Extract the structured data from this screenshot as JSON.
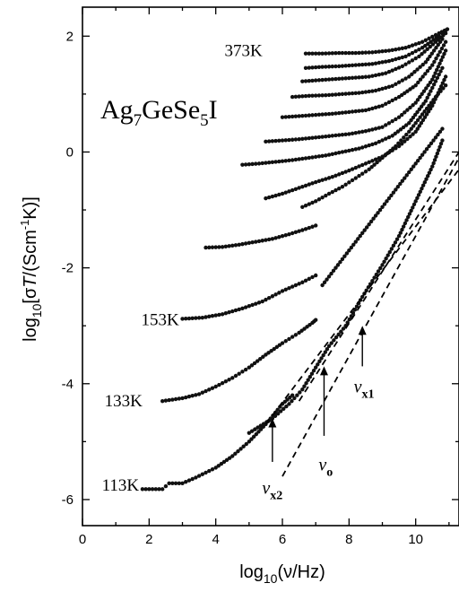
{
  "chart_data": {
    "type": "scatter",
    "formula": {
      "base": "Ag",
      "s1": "7",
      "mid": "GeSe",
      "s2": "5",
      "end": "I"
    },
    "xlabel": {
      "pre": "log",
      "sub": "10",
      "post": "(ν/Hz)"
    },
    "ylabel": {
      "pre": "log",
      "sub": "10",
      "mid": "[σ",
      "T": "T",
      "unit": "/(Scm",
      "sup": "-1",
      "end": "K)]"
    },
    "xlim": [
      0,
      11.3
    ],
    "ylim": [
      -6.45,
      2.5
    ],
    "x_ticks": [
      "0",
      "2",
      "4",
      "6",
      "8",
      "10"
    ],
    "x_tick_values": [
      0,
      2,
      4,
      6,
      8,
      10
    ],
    "y_ticks": [
      "2",
      "0",
      "-2",
      "-4",
      "-6"
    ],
    "y_tick_values": [
      2,
      0,
      -2,
      -4,
      -6
    ],
    "temperature_labels": [
      {
        "text": "373K",
        "x": 5.4,
        "y": 1.75
      },
      {
        "text": "153K",
        "x": 2.9,
        "y": -2.9
      },
      {
        "text": "133K",
        "x": 1.8,
        "y": -4.3
      },
      {
        "text": "113K",
        "x": 1.7,
        "y": -5.75
      }
    ],
    "series": [
      {
        "points": [
          [
            1.8,
            -5.82
          ],
          [
            2.4,
            -5.82
          ],
          [
            2.6,
            -5.72
          ],
          [
            3.0,
            -5.72
          ],
          [
            3.4,
            -5.62
          ],
          [
            4.0,
            -5.45
          ],
          [
            4.5,
            -5.25
          ],
          [
            5.0,
            -5.0
          ],
          [
            5.5,
            -4.7
          ],
          [
            6.0,
            -4.35
          ],
          [
            6.3,
            -4.2
          ]
        ]
      },
      {
        "points": [
          [
            5.0,
            -4.85
          ],
          [
            5.7,
            -4.6
          ],
          [
            6.2,
            -4.35
          ],
          [
            6.6,
            -4.1
          ],
          [
            7.0,
            -3.72
          ],
          [
            7.4,
            -3.35
          ],
          [
            7.9,
            -3.0
          ],
          [
            8.4,
            -2.5
          ],
          [
            9.0,
            -1.95
          ],
          [
            9.5,
            -1.45
          ],
          [
            10.0,
            -0.85
          ],
          [
            10.5,
            -0.25
          ],
          [
            10.8,
            0.2
          ]
        ]
      },
      {
        "points": [
          [
            2.4,
            -4.3
          ],
          [
            3.0,
            -4.25
          ],
          [
            3.5,
            -4.18
          ],
          [
            4.0,
            -4.05
          ],
          [
            4.5,
            -3.9
          ],
          [
            5.0,
            -3.72
          ],
          [
            5.5,
            -3.5
          ],
          [
            6.0,
            -3.3
          ],
          [
            6.5,
            -3.12
          ],
          [
            6.9,
            -2.95
          ],
          [
            7.0,
            -2.9
          ]
        ]
      },
      {
        "points": [
          [
            7.2,
            -2.3
          ],
          [
            7.6,
            -2.0
          ],
          [
            8.0,
            -1.7
          ],
          [
            8.4,
            -1.4
          ],
          [
            8.8,
            -1.1
          ],
          [
            9.2,
            -0.8
          ],
          [
            9.6,
            -0.5
          ],
          [
            10.0,
            -0.2
          ],
          [
            10.4,
            0.1
          ],
          [
            10.8,
            0.4
          ]
        ]
      },
      {
        "points": [
          [
            3.0,
            -2.88
          ],
          [
            3.6,
            -2.86
          ],
          [
            4.2,
            -2.8
          ],
          [
            4.8,
            -2.7
          ],
          [
            5.4,
            -2.58
          ],
          [
            6.0,
            -2.4
          ],
          [
            6.6,
            -2.25
          ],
          [
            7.0,
            -2.13
          ]
        ]
      },
      {
        "points": [
          [
            6.6,
            -0.95
          ],
          [
            7.0,
            -0.85
          ],
          [
            7.4,
            -0.72
          ],
          [
            7.8,
            -0.6
          ],
          [
            8.2,
            -0.45
          ],
          [
            8.6,
            -0.3
          ],
          [
            9.0,
            -0.1
          ],
          [
            9.4,
            0.1
          ],
          [
            9.8,
            0.35
          ],
          [
            10.2,
            0.65
          ],
          [
            10.6,
            0.95
          ],
          [
            10.9,
            1.15
          ]
        ]
      },
      {
        "points": [
          [
            3.7,
            -1.65
          ],
          [
            4.2,
            -1.64
          ],
          [
            4.7,
            -1.6
          ],
          [
            5.2,
            -1.55
          ],
          [
            5.7,
            -1.5
          ],
          [
            6.2,
            -1.42
          ],
          [
            6.7,
            -1.33
          ],
          [
            7.0,
            -1.27
          ]
        ]
      },
      {
        "points": [
          [
            5.5,
            -0.8
          ],
          [
            6.0,
            -0.72
          ],
          [
            6.5,
            -0.62
          ],
          [
            7.0,
            -0.52
          ],
          [
            7.5,
            -0.43
          ],
          [
            8.0,
            -0.32
          ],
          [
            8.5,
            -0.2
          ],
          [
            9.0,
            -0.08
          ],
          [
            9.5,
            0.1
          ],
          [
            10.0,
            0.35
          ],
          [
            10.5,
            0.8
          ],
          [
            10.9,
            1.3
          ]
        ]
      },
      {
        "points": [
          [
            4.8,
            -0.22
          ],
          [
            5.3,
            -0.2
          ],
          [
            5.8,
            -0.17
          ],
          [
            6.3,
            -0.14
          ],
          [
            6.8,
            -0.1
          ],
          [
            7.3,
            -0.06
          ],
          [
            7.8,
            0.0
          ],
          [
            8.3,
            0.06
          ],
          [
            8.8,
            0.15
          ],
          [
            9.3,
            0.28
          ],
          [
            9.8,
            0.5
          ],
          [
            10.3,
            0.88
          ],
          [
            10.8,
            1.45
          ]
        ]
      },
      {
        "points": [
          [
            5.5,
            0.18
          ],
          [
            6.0,
            0.2
          ],
          [
            6.5,
            0.22
          ],
          [
            7.0,
            0.25
          ],
          [
            7.5,
            0.28
          ],
          [
            8.0,
            0.31
          ],
          [
            8.5,
            0.36
          ],
          [
            9.0,
            0.43
          ],
          [
            9.5,
            0.6
          ],
          [
            10.0,
            0.85
          ],
          [
            10.5,
            1.25
          ],
          [
            10.9,
            1.75
          ]
        ]
      },
      {
        "points": [
          [
            6.0,
            0.6
          ],
          [
            6.5,
            0.62
          ],
          [
            7.0,
            0.64
          ],
          [
            7.5,
            0.66
          ],
          [
            8.0,
            0.69
          ],
          [
            8.5,
            0.72
          ],
          [
            9.0,
            0.8
          ],
          [
            9.5,
            0.95
          ],
          [
            10.0,
            1.15
          ],
          [
            10.5,
            1.5
          ],
          [
            10.9,
            1.9
          ]
        ]
      },
      {
        "points": [
          [
            6.3,
            0.95
          ],
          [
            6.8,
            0.97
          ],
          [
            7.3,
            0.98
          ],
          [
            7.8,
            1.0
          ],
          [
            8.3,
            1.02
          ],
          [
            8.8,
            1.06
          ],
          [
            9.3,
            1.14
          ],
          [
            9.8,
            1.3
          ],
          [
            10.3,
            1.55
          ],
          [
            10.8,
            1.95
          ]
        ]
      },
      {
        "points": [
          [
            6.6,
            1.22
          ],
          [
            7.1,
            1.24
          ],
          [
            7.6,
            1.26
          ],
          [
            8.1,
            1.28
          ],
          [
            8.6,
            1.3
          ],
          [
            9.1,
            1.36
          ],
          [
            9.6,
            1.48
          ],
          [
            10.1,
            1.65
          ],
          [
            10.6,
            1.9
          ],
          [
            10.9,
            2.05
          ]
        ]
      },
      {
        "points": [
          [
            6.7,
            1.45
          ],
          [
            7.2,
            1.47
          ],
          [
            7.7,
            1.48
          ],
          [
            8.2,
            1.5
          ],
          [
            8.7,
            1.52
          ],
          [
            9.2,
            1.57
          ],
          [
            9.7,
            1.65
          ],
          [
            10.2,
            1.8
          ],
          [
            10.7,
            2.0
          ],
          [
            10.9,
            2.1
          ]
        ]
      },
      {
        "points": [
          [
            6.7,
            1.7
          ],
          [
            7.2,
            1.7
          ],
          [
            7.7,
            1.71
          ],
          [
            8.2,
            1.71
          ],
          [
            8.7,
            1.72
          ],
          [
            9.2,
            1.75
          ],
          [
            9.7,
            1.8
          ],
          [
            10.2,
            1.9
          ],
          [
            10.7,
            2.05
          ],
          [
            10.95,
            2.12
          ]
        ]
      }
    ],
    "fit_lines": [
      {
        "from": [
          5.5,
          -4.7
        ],
        "to": [
          11.3,
          -0.3
        ]
      },
      {
        "from": [
          6.0,
          -5.6
        ],
        "to": [
          11.3,
          -0.1
        ]
      },
      {
        "from": [
          6.5,
          -4.3
        ],
        "to": [
          11.3,
          0.0
        ]
      }
    ],
    "frequency_markers": [
      {
        "x": 5.7,
        "y_tip": -4.6,
        "y_tail": -5.35,
        "label_main": "ν",
        "label_sub": "x2",
        "label_x": 5.7,
        "label_y": -5.9
      },
      {
        "x": 7.25,
        "y_tip": -3.7,
        "y_tail": -4.9,
        "label_main": "ν",
        "label_sub": "o",
        "label_x": 7.3,
        "label_y": -5.5
      },
      {
        "x": 8.4,
        "y_tip": -3.0,
        "y_tail": -3.7,
        "label_main": "ν",
        "label_sub": "x1",
        "label_x": 8.45,
        "label_y": -4.15
      }
    ]
  }
}
